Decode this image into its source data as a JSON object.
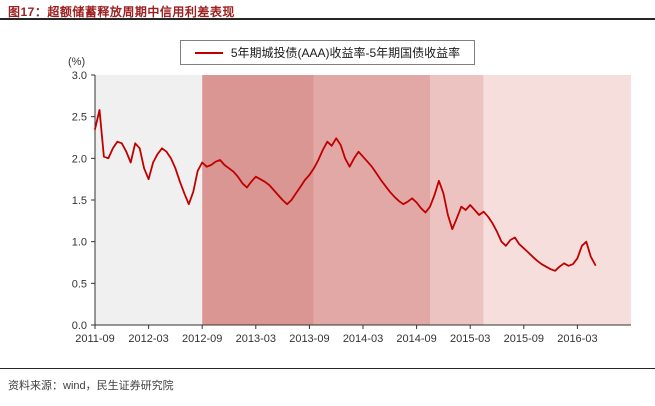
{
  "header": {
    "title": "图17：超额储蓄释放周期中信用利差表现"
  },
  "footer": {
    "source": "资料来源：wind，民生证券研究院"
  },
  "chart_data": {
    "type": "line",
    "title": "图17：超额储蓄释放周期中信用利差表现",
    "unit_label": "(%)",
    "legend": "5年期城投债(AAA)收益率-5年期国债收益率",
    "legend_position": "top-center",
    "grid": false,
    "ylim": [
      0,
      3
    ],
    "y_ticks": [
      "0.0",
      "0.5",
      "1.0",
      "1.5",
      "2.0",
      "2.5",
      "3.0"
    ],
    "x_domain_months": [
      0,
      60
    ],
    "x_tick_labels": [
      "2011-09",
      "2012-03",
      "2012-09",
      "2013-03",
      "2013-09",
      "2014-03",
      "2014-09",
      "2015-03",
      "2015-09",
      "2016-03"
    ],
    "x_tick_positions_months": [
      0,
      6,
      12,
      18,
      24,
      30,
      36,
      42,
      48,
      54
    ],
    "bands": [
      {
        "start": 0,
        "end": 12,
        "color": "#f0f0f0"
      },
      {
        "start": 12,
        "end": 24.5,
        "color": "#d99693"
      },
      {
        "start": 24.5,
        "end": 37.5,
        "color": "#e2a8a6"
      },
      {
        "start": 37.5,
        "end": 43.5,
        "color": "#edc3c2"
      },
      {
        "start": 43.5,
        "end": 60,
        "color": "#f6dedd"
      }
    ],
    "series": [
      {
        "name": "5年期城投债(AAA)收益率-5年期国债收益率",
        "color": "#c00000",
        "x_start": 0,
        "x_step": 0.5,
        "values": [
          2.35,
          2.58,
          2.02,
          2.0,
          2.12,
          2.2,
          2.18,
          2.08,
          1.95,
          2.18,
          2.12,
          1.88,
          1.75,
          1.95,
          2.05,
          2.12,
          2.08,
          2.0,
          1.88,
          1.72,
          1.58,
          1.45,
          1.6,
          1.85,
          1.95,
          1.9,
          1.92,
          1.96,
          1.98,
          1.92,
          1.88,
          1.84,
          1.78,
          1.7,
          1.65,
          1.72,
          1.78,
          1.75,
          1.72,
          1.68,
          1.62,
          1.56,
          1.5,
          1.45,
          1.5,
          1.58,
          1.66,
          1.74,
          1.8,
          1.88,
          1.98,
          2.1,
          2.2,
          2.15,
          2.24,
          2.16,
          2.0,
          1.9,
          2.0,
          2.08,
          2.02,
          1.96,
          1.9,
          1.82,
          1.74,
          1.67,
          1.6,
          1.54,
          1.49,
          1.45,
          1.48,
          1.52,
          1.47,
          1.4,
          1.35,
          1.42,
          1.56,
          1.73,
          1.58,
          1.32,
          1.15,
          1.28,
          1.42,
          1.38,
          1.44,
          1.38,
          1.32,
          1.36,
          1.3,
          1.22,
          1.12,
          1.0,
          0.95,
          1.02,
          1.05,
          0.97,
          0.92,
          0.87,
          0.82,
          0.77,
          0.73,
          0.7,
          0.67,
          0.65,
          0.7,
          0.74,
          0.71,
          0.73,
          0.8,
          0.95,
          1.0,
          0.82,
          0.72
        ]
      }
    ]
  }
}
